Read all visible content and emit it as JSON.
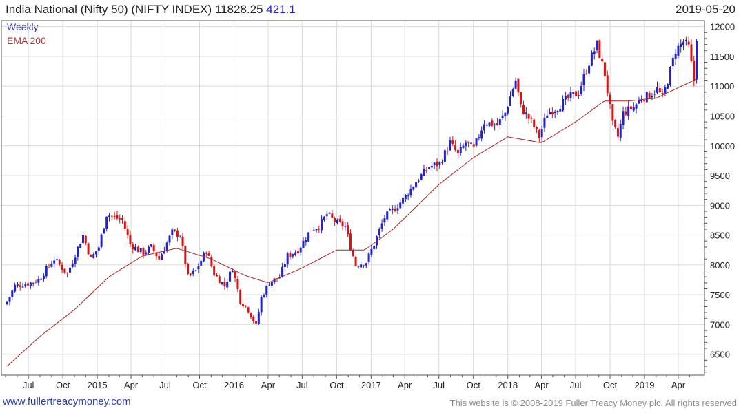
{
  "header": {
    "title": "India National (Nifty 50) (NIFTY INDEX) 11828.25",
    "change": "421.1",
    "date": "2019-05-20"
  },
  "legend": {
    "weekly": "Weekly",
    "ema": "EMA 200"
  },
  "footer": {
    "site": "www.fullertreacymoney.com",
    "copyright": "This website is © 2008-2019 Fuller Treacy Money plc. All rights reserved"
  },
  "colors": {
    "up": "#2222cc",
    "down": "#dd1111",
    "ema": "#b02020",
    "grid": "#d9d9d9"
  },
  "chart_data": {
    "type": "candlestick",
    "title": "India National (Nifty 50) (NIFTY INDEX) 11828.25",
    "frequency": "weekly",
    "ylim": [
      6150,
      12100
    ],
    "y_ticks": [
      6500,
      7000,
      7500,
      8000,
      8500,
      9000,
      9500,
      10000,
      10500,
      11000,
      11500,
      12000
    ],
    "x_ticks": [
      "Jul",
      "Oct",
      "2015",
      "Apr",
      "Jul",
      "Oct",
      "2016",
      "Apr",
      "Jul",
      "Oct",
      "2017",
      "Apr",
      "Jul",
      "Oct",
      "2018",
      "Apr",
      "Jul",
      "Oct",
      "2019",
      "Apr"
    ],
    "x_range": [
      "2014-05-01",
      "2019-05-30"
    ],
    "grid": true,
    "price_anchors": [
      [
        "2014-05-05",
        7380
      ],
      [
        "2014-05-26",
        7650
      ],
      [
        "2014-07-07",
        7700
      ],
      [
        "2014-07-28",
        7750
      ],
      [
        "2014-09-08",
        8100
      ],
      [
        "2014-10-13",
        7850
      ],
      [
        "2014-11-24",
        8500
      ],
      [
        "2014-12-15",
        8100
      ],
      [
        "2015-01-05",
        8300
      ],
      [
        "2015-01-26",
        8850
      ],
      [
        "2015-02-16",
        8800
      ],
      [
        "2015-03-09",
        8750
      ],
      [
        "2015-03-30",
        8350
      ],
      [
        "2015-04-20",
        8250
      ],
      [
        "2015-05-04",
        8200
      ],
      [
        "2015-05-25",
        8300
      ],
      [
        "2015-06-15",
        8100
      ],
      [
        "2015-07-20",
        8550
      ],
      [
        "2015-08-10",
        8500
      ],
      [
        "2015-08-31",
        7800
      ],
      [
        "2015-09-21",
        7900
      ],
      [
        "2015-10-19",
        8250
      ],
      [
        "2015-11-09",
        7850
      ],
      [
        "2015-12-07",
        7650
      ],
      [
        "2015-12-28",
        7950
      ],
      [
        "2016-01-18",
        7400
      ],
      [
        "2016-02-08",
        7250
      ],
      [
        "2016-02-29",
        6980
      ],
      [
        "2016-03-14",
        7450
      ],
      [
        "2016-04-04",
        7700
      ],
      [
        "2016-05-02",
        7800
      ],
      [
        "2016-05-23",
        8150
      ],
      [
        "2016-06-20",
        8250
      ],
      [
        "2016-07-25",
        8600
      ],
      [
        "2016-08-15",
        8650
      ],
      [
        "2016-09-05",
        8850
      ],
      [
        "2016-10-03",
        8700
      ],
      [
        "2016-10-24",
        8650
      ],
      [
        "2016-11-07",
        8300
      ],
      [
        "2016-11-21",
        8000
      ],
      [
        "2016-12-19",
        8050
      ],
      [
        "2017-01-09",
        8350
      ],
      [
        "2017-02-06",
        8800
      ],
      [
        "2017-03-06",
        8950
      ],
      [
        "2017-04-03",
        9150
      ],
      [
        "2017-05-01",
        9400
      ],
      [
        "2017-06-05",
        9650
      ],
      [
        "2017-07-03",
        9700
      ],
      [
        "2017-07-31",
        10050
      ],
      [
        "2017-08-21",
        9850
      ],
      [
        "2017-09-11",
        10050
      ],
      [
        "2017-10-02",
        9950
      ],
      [
        "2017-10-30",
        10400
      ],
      [
        "2017-12-04",
        10350
      ],
      [
        "2017-12-25",
        10550
      ],
      [
        "2018-01-22",
        11100
      ],
      [
        "2018-02-05",
        10650
      ],
      [
        "2018-03-05",
        10400
      ],
      [
        "2018-03-26",
        10150
      ],
      [
        "2018-04-16",
        10550
      ],
      [
        "2018-05-14",
        10650
      ],
      [
        "2018-06-11",
        10800
      ],
      [
        "2018-07-09",
        10900
      ],
      [
        "2018-08-06",
        11400
      ],
      [
        "2018-08-27",
        11700
      ],
      [
        "2018-09-17",
        11200
      ],
      [
        "2018-10-08",
        10350
      ],
      [
        "2018-10-22",
        10150
      ],
      [
        "2018-11-05",
        10550
      ],
      [
        "2018-12-03",
        10650
      ],
      [
        "2018-12-24",
        10800
      ],
      [
        "2019-01-14",
        10850
      ],
      [
        "2019-02-04",
        10950
      ],
      [
        "2019-02-18",
        10800
      ],
      [
        "2019-03-04",
        11100
      ],
      [
        "2019-03-25",
        11600
      ],
      [
        "2019-04-15",
        11750
      ],
      [
        "2019-04-29",
        11650
      ],
      [
        "2019-05-13",
        11100
      ],
      [
        "2019-05-20",
        11828
      ]
    ],
    "ema_anchors": [
      [
        "2014-05-05",
        6300
      ],
      [
        "2014-08-01",
        6800
      ],
      [
        "2014-11-01",
        7250
      ],
      [
        "2015-02-01",
        7800
      ],
      [
        "2015-05-01",
        8150
      ],
      [
        "2015-08-01",
        8280
      ],
      [
        "2015-11-01",
        8100
      ],
      [
        "2016-02-01",
        7820
      ],
      [
        "2016-04-01",
        7700
      ],
      [
        "2016-07-01",
        7950
      ],
      [
        "2016-10-01",
        8250
      ],
      [
        "2016-12-15",
        8250
      ],
      [
        "2017-03-01",
        8600
      ],
      [
        "2017-07-01",
        9350
      ],
      [
        "2017-10-01",
        9800
      ],
      [
        "2018-01-01",
        10150
      ],
      [
        "2018-04-01",
        10050
      ],
      [
        "2018-07-01",
        10400
      ],
      [
        "2018-09-15",
        10750
      ],
      [
        "2018-11-15",
        10750
      ],
      [
        "2019-02-01",
        10800
      ],
      [
        "2019-05-20",
        11120
      ]
    ]
  }
}
